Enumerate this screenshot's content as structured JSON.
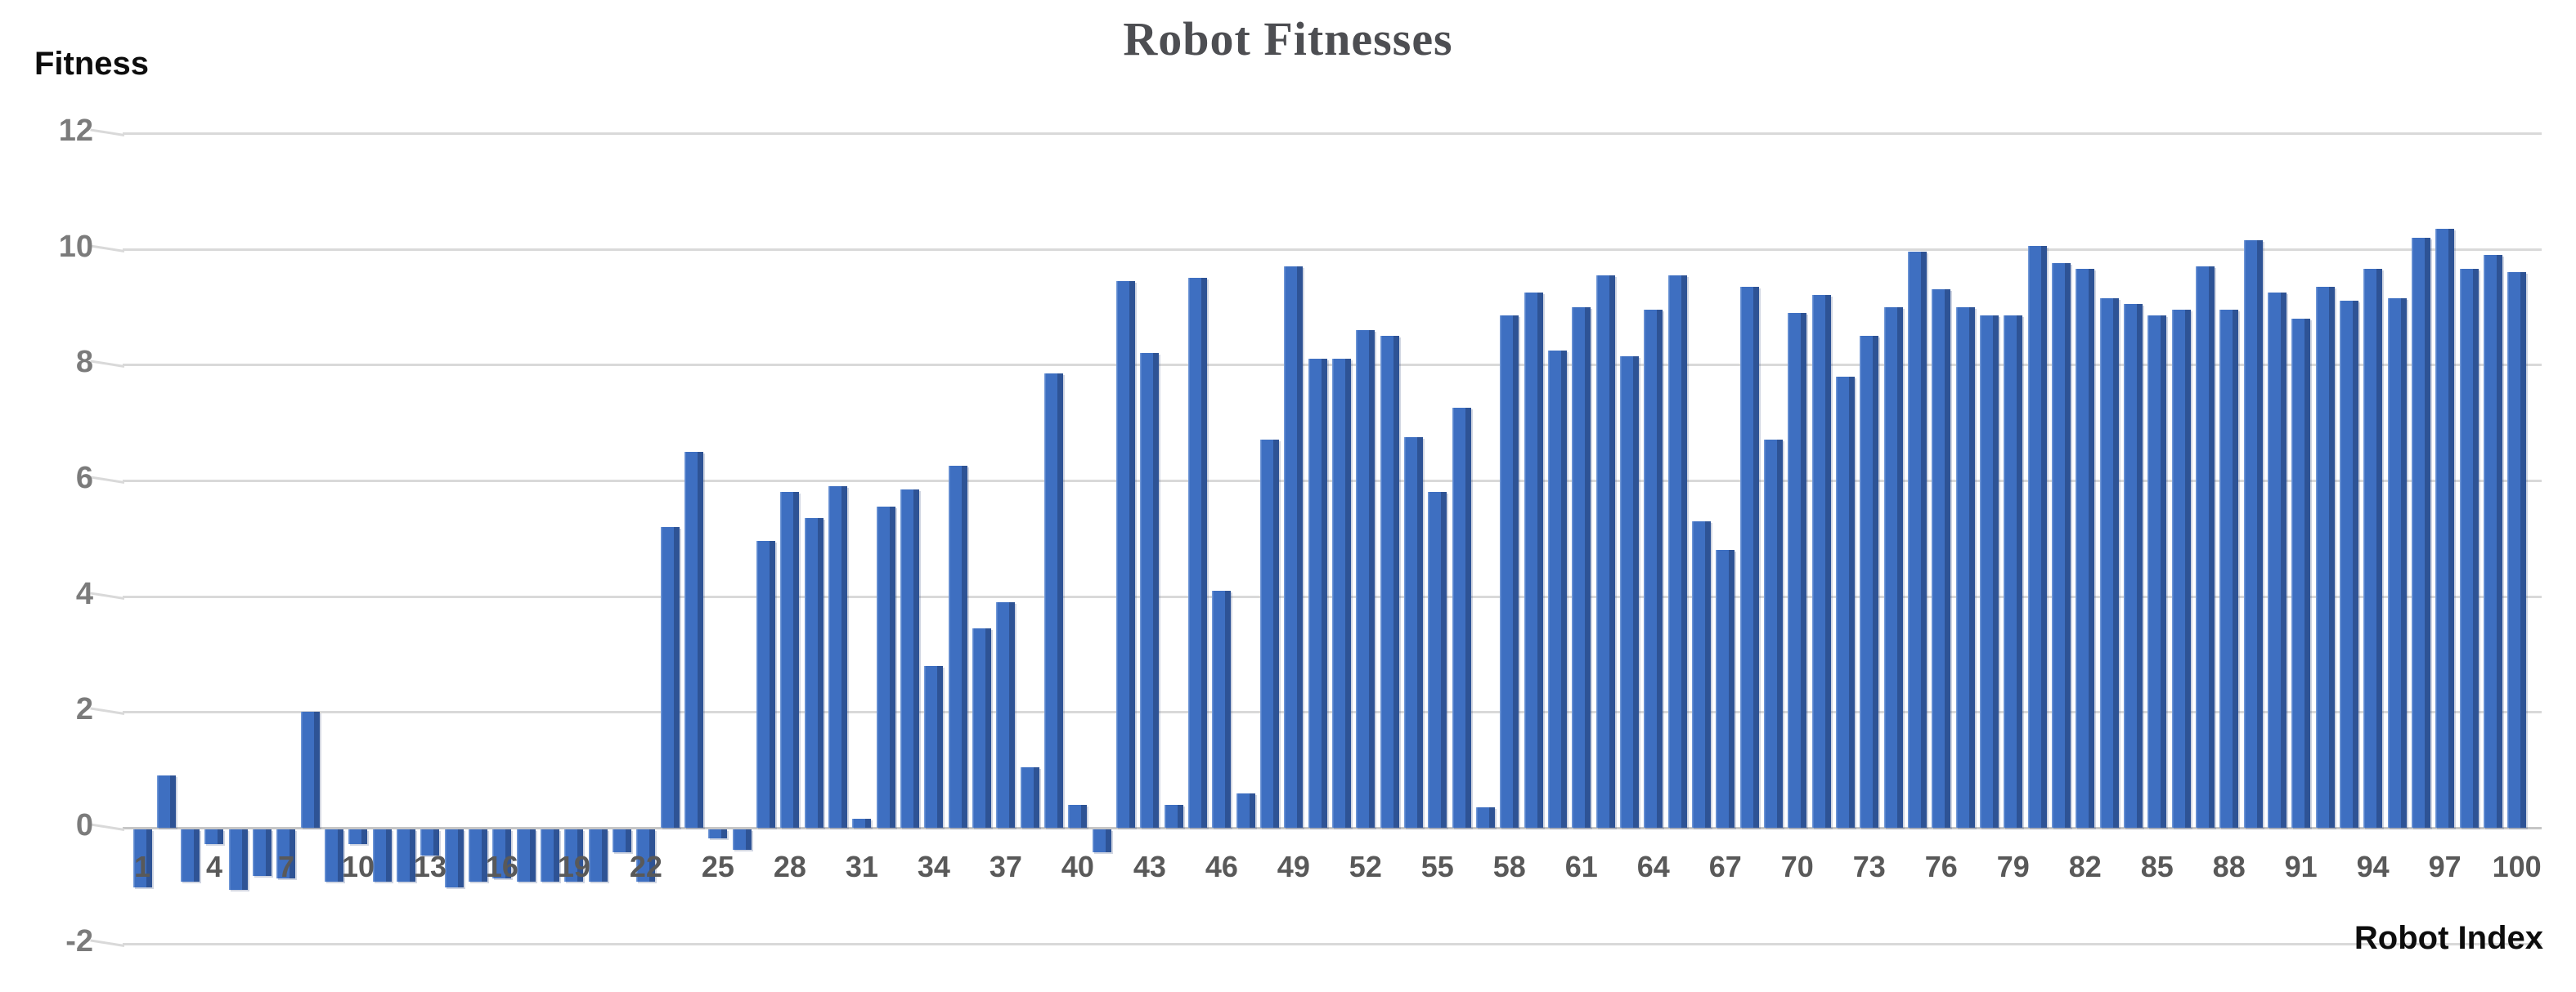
{
  "chart": {
    "title": "Robot Fitnesses",
    "ylabel": "Fitness",
    "xlabel": "Robot Index",
    "title_color": "#4d4e52",
    "bar_color": "#4472c4",
    "bar_edge_color": "#2e5395",
    "gridline_color": "#d9d9d9"
  },
  "chart_data": {
    "type": "bar",
    "title": "Robot Fitnesses",
    "xlabel": "Robot Index",
    "ylabel": "Fitness",
    "ylim": [
      -2,
      12
    ],
    "ytick_values": [
      12,
      10,
      8,
      6,
      4,
      2,
      0,
      -2
    ],
    "xtick_step_note": "x labels shown every 3rd index: 1,4,7,...,100",
    "grid": true,
    "legend": "none",
    "x": [
      1,
      2,
      3,
      4,
      5,
      6,
      7,
      8,
      9,
      10,
      11,
      12,
      13,
      14,
      15,
      16,
      17,
      18,
      19,
      20,
      21,
      22,
      23,
      24,
      25,
      26,
      27,
      28,
      29,
      30,
      31,
      32,
      33,
      34,
      35,
      36,
      37,
      38,
      39,
      40,
      41,
      42,
      43,
      44,
      45,
      46,
      47,
      48,
      49,
      50,
      51,
      52,
      53,
      54,
      55,
      56,
      57,
      58,
      59,
      60,
      61,
      62,
      63,
      64,
      65,
      66,
      67,
      68,
      69,
      70,
      71,
      72,
      73,
      74,
      75,
      76,
      77,
      78,
      79,
      80,
      81,
      82,
      83,
      84,
      85,
      86,
      87,
      88,
      89,
      90,
      91,
      92,
      93,
      94,
      95,
      96,
      97,
      98,
      99,
      100
    ],
    "values": [
      -1.0,
      0.9,
      -0.9,
      -0.25,
      -1.05,
      -0.8,
      -0.85,
      2.0,
      -0.9,
      -0.25,
      -0.9,
      -0.9,
      -0.45,
      -1.0,
      -0.9,
      -0.85,
      -0.9,
      -0.9,
      -0.9,
      -0.9,
      -0.4,
      -0.9,
      5.2,
      6.5,
      -0.15,
      -0.35,
      4.95,
      5.8,
      5.35,
      5.9,
      0.15,
      5.55,
      5.85,
      2.8,
      6.25,
      3.45,
      3.9,
      1.05,
      7.85,
      0.4,
      -0.4,
      9.45,
      8.2,
      0.4,
      9.5,
      4.1,
      0.6,
      6.7,
      9.7,
      8.1,
      8.1,
      8.6,
      8.5,
      6.75,
      5.8,
      7.25,
      0.35,
      8.85,
      9.25,
      8.25,
      9.0,
      9.55,
      8.15,
      8.95,
      9.55,
      5.3,
      4.8,
      9.35,
      6.7,
      8.9,
      9.2,
      7.8,
      8.5,
      9.0,
      9.95,
      9.3,
      9.0,
      8.85,
      8.85,
      10.05,
      9.75,
      9.65,
      9.15,
      9.05,
      8.85,
      8.95,
      9.7,
      8.95,
      10.15,
      9.25,
      8.8,
      9.35,
      9.1,
      9.65,
      9.15,
      10.2,
      10.35,
      9.65,
      9.9,
      9.6
    ]
  }
}
